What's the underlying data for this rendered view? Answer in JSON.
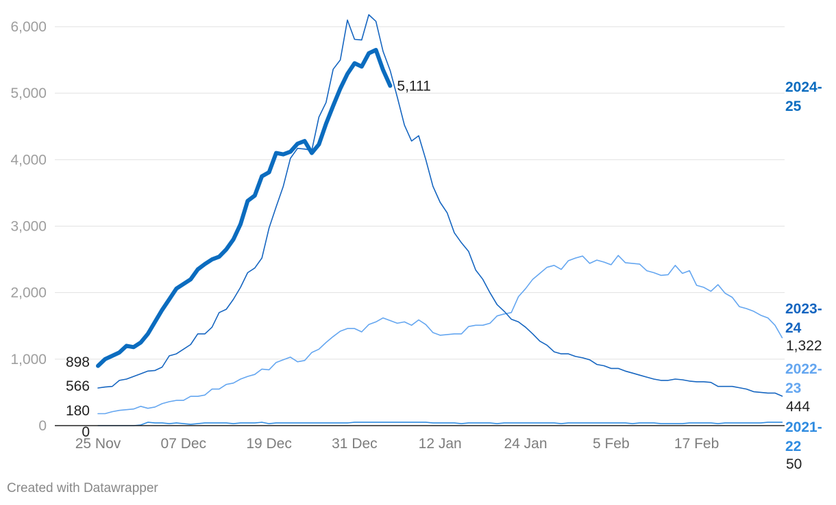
{
  "chart_data": {
    "type": "line",
    "x_ticks": [
      "25 Nov",
      "07 Dec",
      "19 Dec",
      "31 Dec",
      "12 Jan",
      "24 Jan",
      "5 Feb",
      "17 Feb"
    ],
    "y_ticks": [
      "0",
      "1,000",
      "2,000",
      "3,000",
      "4,000",
      "5,000",
      "6,000"
    ],
    "ylim": [
      0,
      6000
    ],
    "x_range_days": [
      0,
      96
    ],
    "grid": true,
    "series": [
      {
        "name": "2024-25",
        "label_lines": [
          "2024-",
          "25"
        ],
        "color": "#0b6cbf",
        "weight": "bold",
        "start_label": "898",
        "end_label": "5,111",
        "values": [
          898,
          1000,
          1050,
          1100,
          1200,
          1180,
          1250,
          1380,
          1560,
          1740,
          1900,
          2060,
          2130,
          2200,
          2350,
          2430,
          2500,
          2540,
          2650,
          2800,
          3030,
          3380,
          3460,
          3750,
          3810,
          4100,
          4080,
          4120,
          4240,
          4280,
          4100,
          4230,
          4540,
          4810,
          5070,
          5290,
          5450,
          5400,
          5600,
          5650,
          5350,
          5111
        ]
      },
      {
        "name": "2023-24",
        "label_lines": [
          "2023-",
          "24"
        ],
        "color": "#1565c0",
        "weight": "thin",
        "start_label": "566",
        "end_label": "444",
        "values": [
          566,
          580,
          590,
          680,
          700,
          740,
          780,
          820,
          830,
          880,
          1050,
          1080,
          1150,
          1220,
          1380,
          1380,
          1480,
          1700,
          1750,
          1900,
          2080,
          2300,
          2370,
          2520,
          2970,
          3290,
          3600,
          4020,
          4170,
          4160,
          4140,
          4640,
          4860,
          5360,
          5500,
          6100,
          5810,
          5800,
          6180,
          6080,
          5630,
          5340,
          4940,
          4520,
          4280,
          4360,
          4000,
          3600,
          3360,
          3200,
          2900,
          2750,
          2620,
          2340,
          2200,
          2000,
          1820,
          1720,
          1600,
          1560,
          1480,
          1380,
          1270,
          1210,
          1110,
          1080,
          1080,
          1040,
          1020,
          990,
          920,
          900,
          860,
          860,
          820,
          790,
          760,
          730,
          700,
          680,
          680,
          700,
          690,
          670,
          660,
          660,
          650,
          590,
          590,
          590,
          570,
          550,
          510,
          500,
          490,
          490,
          444
        ]
      },
      {
        "name": "2022-23",
        "label_lines": [
          "2022-",
          "23"
        ],
        "color": "#64a6f0",
        "weight": "thin",
        "start_label": "180",
        "end_label": "1,322",
        "values": [
          180,
          180,
          210,
          230,
          240,
          250,
          290,
          260,
          280,
          330,
          360,
          380,
          380,
          440,
          440,
          460,
          550,
          550,
          620,
          640,
          700,
          740,
          770,
          850,
          840,
          950,
          990,
          1030,
          960,
          980,
          1100,
          1150,
          1250,
          1340,
          1420,
          1460,
          1460,
          1410,
          1520,
          1560,
          1620,
          1580,
          1540,
          1560,
          1510,
          1590,
          1520,
          1400,
          1360,
          1370,
          1380,
          1380,
          1490,
          1510,
          1510,
          1540,
          1650,
          1680,
          1700,
          1940,
          2060,
          2200,
          2290,
          2380,
          2410,
          2350,
          2480,
          2520,
          2550,
          2440,
          2490,
          2460,
          2420,
          2560,
          2450,
          2440,
          2430,
          2330,
          2300,
          2260,
          2270,
          2410,
          2290,
          2330,
          2110,
          2080,
          2020,
          2120,
          1990,
          1930,
          1790,
          1760,
          1720,
          1660,
          1620,
          1510,
          1322
        ]
      },
      {
        "name": "2021-22",
        "label_lines": [
          "2021-",
          "22"
        ],
        "color": "#2f8be0",
        "weight": "thin",
        "start_label": "0",
        "end_label": "50",
        "values": [
          0,
          0,
          0,
          0,
          0,
          0,
          10,
          50,
          40,
          40,
          30,
          40,
          30,
          20,
          30,
          40,
          40,
          40,
          40,
          30,
          40,
          40,
          40,
          50,
          30,
          40,
          40,
          40,
          40,
          40,
          40,
          40,
          40,
          40,
          40,
          40,
          50,
          50,
          50,
          50,
          50,
          50,
          50,
          50,
          50,
          50,
          50,
          40,
          40,
          40,
          40,
          30,
          40,
          40,
          40,
          40,
          30,
          40,
          40,
          40,
          40,
          40,
          40,
          40,
          40,
          30,
          40,
          40,
          40,
          40,
          40,
          40,
          40,
          40,
          40,
          30,
          40,
          40,
          40,
          30,
          30,
          30,
          30,
          40,
          40,
          40,
          40,
          30,
          40,
          40,
          40,
          40,
          40,
          40,
          50,
          50,
          50
        ]
      }
    ]
  },
  "footer": {
    "credit": "Created with Datawrapper"
  }
}
